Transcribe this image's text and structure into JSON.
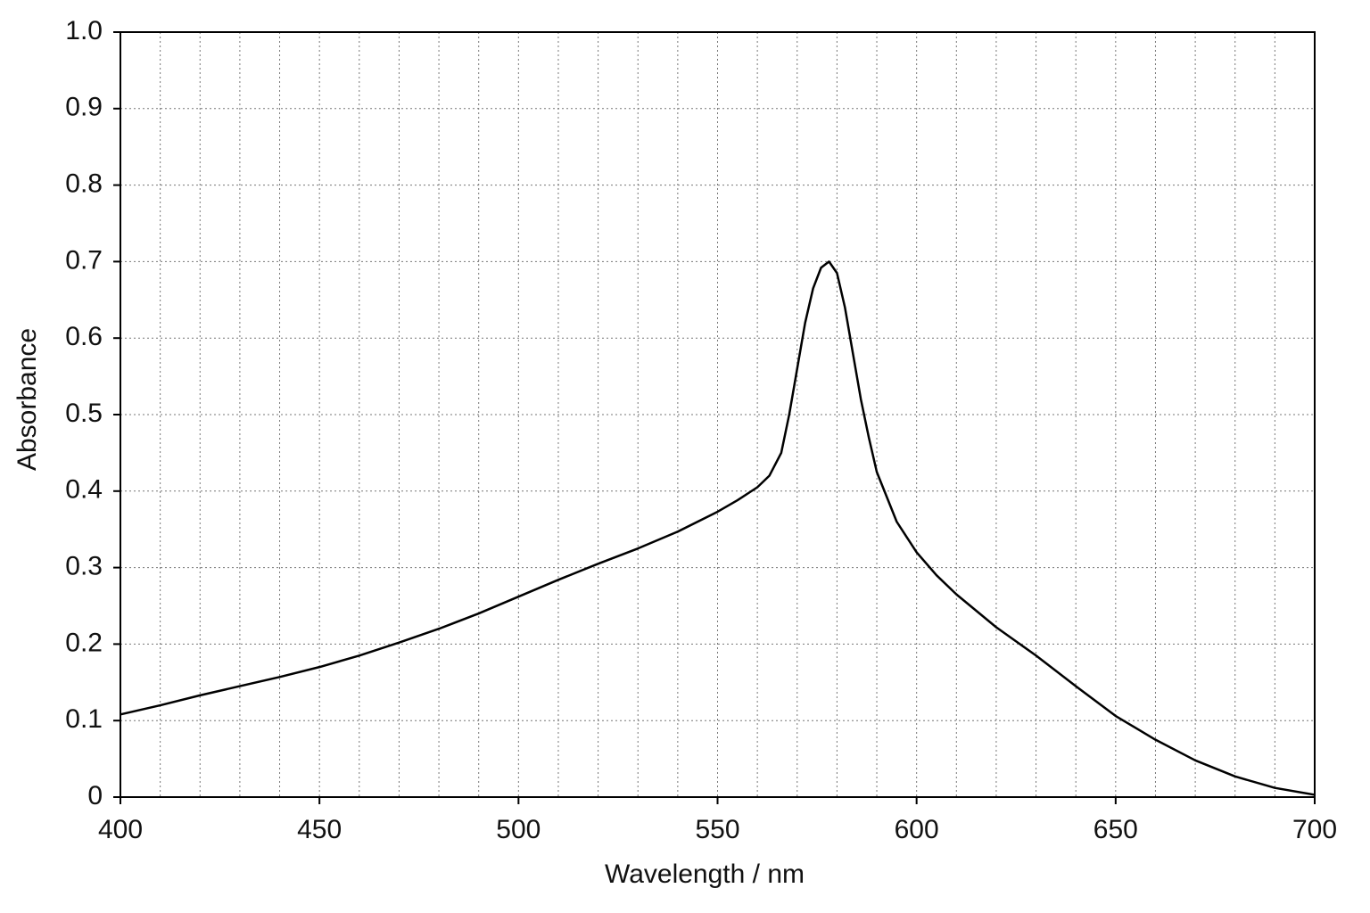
{
  "chart_data": {
    "type": "line",
    "xlabel": "Wavelength / nm",
    "ylabel": "Absorbance",
    "x": [
      400,
      410,
      420,
      430,
      440,
      450,
      460,
      470,
      480,
      490,
      500,
      510,
      520,
      530,
      540,
      550,
      555,
      560,
      563,
      566,
      568,
      570,
      572,
      574,
      576,
      578,
      580,
      582,
      584,
      586,
      588,
      590,
      595,
      600,
      605,
      610,
      620,
      630,
      640,
      650,
      660,
      670,
      680,
      690,
      700
    ],
    "values": [
      0.108,
      0.12,
      0.133,
      0.145,
      0.157,
      0.17,
      0.185,
      0.202,
      0.22,
      0.24,
      0.262,
      0.284,
      0.305,
      0.325,
      0.347,
      0.373,
      0.388,
      0.405,
      0.42,
      0.45,
      0.5,
      0.56,
      0.62,
      0.665,
      0.692,
      0.7,
      0.685,
      0.64,
      0.58,
      0.52,
      0.47,
      0.425,
      0.36,
      0.32,
      0.29,
      0.265,
      0.222,
      0.185,
      0.145,
      0.106,
      0.075,
      0.048,
      0.027,
      0.012,
      0.003
    ],
    "color": "#000000",
    "xlim": [
      400,
      700
    ],
    "xticks": [
      400,
      450,
      500,
      550,
      600,
      650,
      700
    ],
    "ylim": [
      0,
      1
    ],
    "yticks": [
      0,
      0.1,
      0.2,
      0.3,
      0.4,
      0.5,
      0.6,
      0.7,
      0.8,
      0.9,
      {
        "value": 1,
        "label": "1.0"
      }
    ],
    "x_minor_grid": [
      410,
      420,
      430,
      440,
      460,
      470,
      480,
      490,
      510,
      520,
      530,
      540,
      560,
      570,
      580,
      590,
      610,
      620,
      630,
      640,
      660,
      670,
      680,
      690
    ],
    "grid": true
  }
}
